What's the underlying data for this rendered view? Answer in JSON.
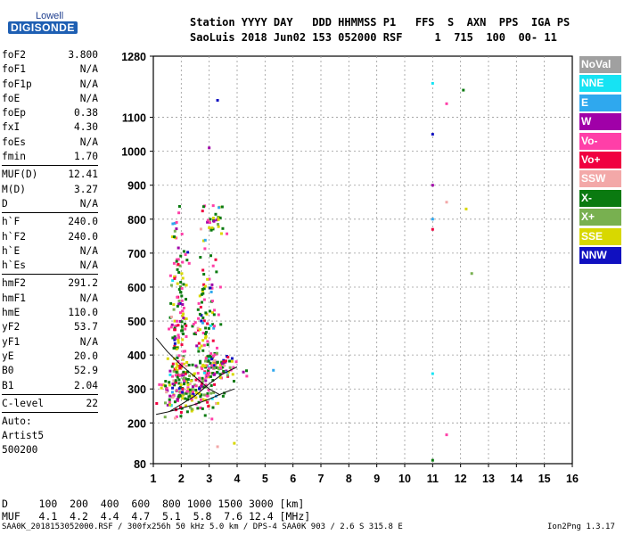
{
  "logo": {
    "line1": "Lowell",
    "line2": "DIGISONDE"
  },
  "header": {
    "line1": "Station YYYY DAY   DDD HHMMSS P1   FFS  S  AXN  PPS  IGA PS",
    "line2": "SaoLuis 2018 Jun02 153 052000 RSF     1  715  100  00- 11"
  },
  "params": [
    {
      "name": "foF2",
      "value": "3.800"
    },
    {
      "name": "foF1",
      "value": "N/A"
    },
    {
      "name": "foF1p",
      "value": "N/A"
    },
    {
      "name": "foE",
      "value": "N/A"
    },
    {
      "name": "foEp",
      "value": "0.38"
    },
    {
      "name": "fxI",
      "value": "4.30"
    },
    {
      "name": "foEs",
      "value": "N/A"
    },
    {
      "name": "fmin",
      "value": "1.70"
    },
    {
      "name": "MUF(D)",
      "value": "12.41"
    },
    {
      "name": "M(D)",
      "value": "3.27"
    },
    {
      "name": "D",
      "value": "N/A"
    },
    {
      "name": "h`F",
      "value": "240.0"
    },
    {
      "name": "h`F2",
      "value": "240.0"
    },
    {
      "name": "h`E",
      "value": "N/A"
    },
    {
      "name": "h`Es",
      "value": "N/A"
    },
    {
      "name": "hmF2",
      "value": "291.2"
    },
    {
      "name": "hmF1",
      "value": "N/A"
    },
    {
      "name": "hmE",
      "value": "110.0"
    },
    {
      "name": "yF2",
      "value": "53.7"
    },
    {
      "name": "yF1",
      "value": "N/A"
    },
    {
      "name": "yE",
      "value": "20.0"
    },
    {
      "name": "B0",
      "value": "52.9"
    },
    {
      "name": "B1",
      "value": "2.04"
    },
    {
      "name": "C-level",
      "value": "22"
    }
  ],
  "auto": {
    "line1": "Auto:",
    "line2": "Artist5",
    "line3": "500200"
  },
  "legend": [
    {
      "label": "NoVal",
      "color": "#a0a0a0"
    },
    {
      "label": "NNE",
      "color": "#16e3f3"
    },
    {
      "label": "E",
      "color": "#2fa8ee"
    },
    {
      "label": "W",
      "color": "#a000a8"
    },
    {
      "label": "Vo-",
      "color": "#ff3fa8"
    },
    {
      "label": "Vo+",
      "color": "#f00040"
    },
    {
      "label": "SSW",
      "color": "#f3a8a8"
    },
    {
      "label": "X-",
      "color": "#0a7a10"
    },
    {
      "label": "X+",
      "color": "#78b050"
    },
    {
      "label": "SSE",
      "color": "#d8d800"
    },
    {
      "label": "NNW",
      "color": "#1010c0"
    }
  ],
  "table": {
    "d_row": "D     100  200  400  600  800 1000 1500 3000 [km]",
    "muf_row": "MUF   4.1  4.2  4.4  4.7  5.1  5.8  7.6 12.4 [MHz]"
  },
  "footer": {
    "left": "SAA0K_2018153052000.RSF / 300fx256h 50 kHz 5.0 km / DPS-4 SAA0K 903 / 2.6 S 315.8 E",
    "right": "Ion2Png 1.3.17"
  },
  "chart_data": {
    "type": "scatter",
    "x_ticks": [
      1,
      2,
      3,
      4,
      5,
      6,
      7,
      8,
      9,
      10,
      11,
      12,
      13,
      14,
      15,
      16
    ],
    "y_ticks": [
      80,
      200,
      300,
      400,
      500,
      600,
      700,
      800,
      900,
      1000,
      1100,
      1280
    ],
    "xlim": [
      1,
      16
    ],
    "ylim": [
      80,
      1280
    ],
    "grid": true,
    "traces": [
      {
        "name": "ordinary",
        "points": [
          [
            1.1,
            225
          ],
          [
            1.5,
            232
          ],
          [
            2.0,
            243
          ],
          [
            2.5,
            255
          ],
          [
            3.0,
            270
          ],
          [
            3.5,
            288
          ],
          [
            3.9,
            300
          ]
        ]
      },
      {
        "name": "ordinary-upper",
        "points": [
          [
            1.1,
            450
          ],
          [
            1.5,
            410
          ],
          [
            2.0,
            370
          ],
          [
            2.5,
            335
          ],
          [
            3.0,
            300
          ],
          [
            3.4,
            282
          ]
        ]
      },
      {
        "name": "extraordinary",
        "points": [
          [
            1.6,
            235
          ],
          [
            2.0,
            255
          ],
          [
            2.5,
            280
          ],
          [
            3.0,
            315
          ],
          [
            3.5,
            345
          ],
          [
            4.0,
            365
          ]
        ]
      }
    ],
    "clusters": [
      {
        "cx": 1.9,
        "cy": 300,
        "sx": 0.35,
        "sy": 40,
        "n": 90
      },
      {
        "cx": 2.6,
        "cy": 290,
        "sx": 0.45,
        "sy": 30,
        "n": 90
      },
      {
        "cx": 3.4,
        "cy": 360,
        "sx": 0.45,
        "sy": 20,
        "n": 80
      },
      {
        "cx": 1.9,
        "cy": 450,
        "sx": 0.2,
        "sy": 120,
        "n": 120
      },
      {
        "cx": 2.9,
        "cy": 500,
        "sx": 0.25,
        "sy": 110,
        "n": 120
      },
      {
        "cx": 3.2,
        "cy": 790,
        "sx": 0.2,
        "sy": 30,
        "n": 30
      },
      {
        "cx": 1.9,
        "cy": 680,
        "sx": 0.12,
        "sy": 90,
        "n": 30
      }
    ],
    "isolated": [
      {
        "x": 11.0,
        "y": 1200
      },
      {
        "x": 11.5,
        "y": 1140
      },
      {
        "x": 12.1,
        "y": 1180
      },
      {
        "x": 11.0,
        "y": 1050
      },
      {
        "x": 11.0,
        "y": 900
      },
      {
        "x": 11.5,
        "y": 850
      },
      {
        "x": 12.2,
        "y": 830
      },
      {
        "x": 11.0,
        "y": 800
      },
      {
        "x": 11.0,
        "y": 770
      },
      {
        "x": 12.4,
        "y": 640
      },
      {
        "x": 11.0,
        "y": 345
      },
      {
        "x": 11.5,
        "y": 165
      },
      {
        "x": 11.0,
        "y": 90
      },
      {
        "x": 3.3,
        "y": 1150
      },
      {
        "x": 3.0,
        "y": 1010
      },
      {
        "x": 3.3,
        "y": 130
      },
      {
        "x": 3.9,
        "y": 140
      },
      {
        "x": 5.3,
        "y": 355
      }
    ]
  }
}
